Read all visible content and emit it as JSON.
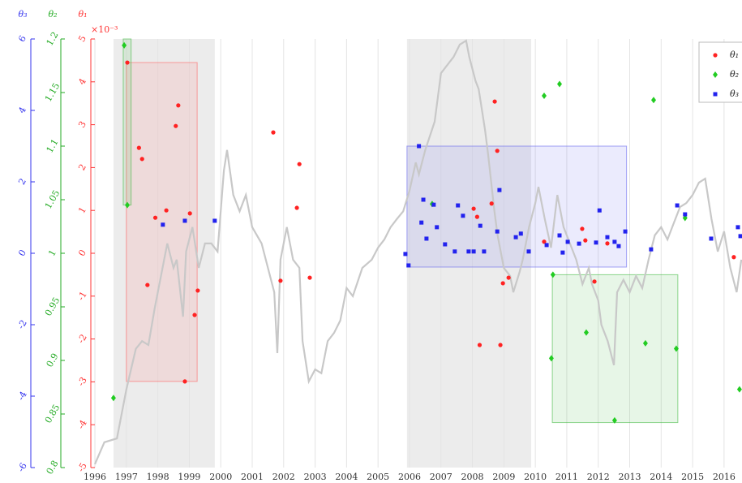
{
  "chart_data": {
    "type": "scatter",
    "xlim": [
      1995.87,
      2016.57
    ],
    "xticks": [
      1996,
      1997,
      1998,
      1999,
      2000,
      2001,
      2002,
      2003,
      2004,
      2005,
      2006,
      2007,
      2008,
      2009,
      2010,
      2011,
      2012,
      2013,
      2014,
      2015,
      2016
    ],
    "grid": true,
    "y_axes": [
      {
        "title": "θ₁",
        "color": "#ff3333",
        "ylim": [
          -5,
          5
        ],
        "yticks": [
          -5,
          -4,
          -3,
          -2,
          -1,
          0,
          1,
          2,
          3,
          4,
          5
        ],
        "multiplier": "×10⁻³"
      },
      {
        "title": "θ₂",
        "color": "#22aa22",
        "ylim": [
          0.8,
          1.2
        ],
        "yticks": [
          0.8,
          0.85,
          0.9,
          0.95,
          1,
          1.05,
          1.1,
          1.15,
          1.2
        ]
      },
      {
        "title": "θ₃",
        "color": "#3333ee",
        "ylim": [
          -6,
          6
        ],
        "yticks": [
          -6,
          -4,
          -2,
          0,
          2,
          4,
          6
        ]
      }
    ],
    "shaded_periods": [
      {
        "color": "#ececec",
        "x": [
          1996.59,
          1999.81
        ]
      },
      {
        "color": "#ececec",
        "x": [
          2005.92,
          2009.87
        ]
      }
    ],
    "boxes": [
      {
        "axis": 0,
        "color": "#ff6666",
        "x": [
          1997.0,
          1999.25
        ],
        "y": [
          -2.99,
          4.45
        ]
      },
      {
        "axis": 1,
        "color": "#44bb44",
        "x": [
          1996.9,
          1997.15
        ],
        "y": [
          1.045,
          1.2
        ]
      },
      {
        "axis": 2,
        "color": "#6666ee",
        "x": [
          2005.92,
          2012.9
        ],
        "y": [
          -0.386,
          3.0
        ]
      },
      {
        "axis": 1,
        "color": "#44bb44",
        "x": [
          2010.54,
          2014.53
        ],
        "y": [
          0.842,
          0.98
        ]
      }
    ],
    "background_line": {
      "axis": 0,
      "color": "#c8c8c8",
      "x": [
        1996.0,
        1996.3,
        1996.7,
        1997.0,
        1997.3,
        1997.5,
        1997.7,
        1997.9,
        1998.1,
        1998.3,
        1998.5,
        1998.6,
        1998.8,
        1998.9,
        1999.1,
        1999.3,
        1999.5,
        1999.7,
        1999.9,
        2000.1,
        2000.2,
        2000.4,
        2000.6,
        2000.8,
        2001.0,
        2001.3,
        2001.5,
        2001.7,
        2001.8,
        2001.9,
        2002.1,
        2002.3,
        2002.5,
        2002.6,
        2002.8,
        2003.0,
        2003.2,
        2003.4,
        2003.6,
        2003.8,
        2004.0,
        2004.2,
        2004.5,
        2004.8,
        2005.0,
        2005.2,
        2005.4,
        2005.6,
        2005.8,
        2006.0,
        2006.2,
        2006.3,
        2006.5,
        2006.8,
        2007.0,
        2007.2,
        2007.4,
        2007.6,
        2007.8,
        2007.9,
        2008.1,
        2008.2,
        2008.4,
        2008.5,
        2008.7,
        2008.8,
        2009.0,
        2009.2,
        2009.3,
        2009.5,
        2009.6,
        2009.8,
        2010.0,
        2010.1,
        2010.3,
        2010.5,
        2010.7,
        2010.9,
        2011.1,
        2011.3,
        2011.5,
        2011.7,
        2011.8,
        2012.0,
        2012.1,
        2012.3,
        2012.5,
        2012.6,
        2012.8,
        2013.0,
        2013.2,
        2013.4,
        2013.6,
        2013.8,
        2014.0,
        2014.2,
        2014.4,
        2014.6,
        2014.8,
        2015.0,
        2015.2,
        2015.4,
        2015.6,
        2015.8,
        2016.0,
        2016.2,
        2016.4,
        2016.55
      ],
      "values": [
        -4.92,
        -4.41,
        -4.32,
        -3.18,
        -2.23,
        -2.05,
        -2.14,
        -1.29,
        -0.53,
        0.23,
        -0.34,
        -0.15,
        -1.48,
        0.04,
        0.61,
        -0.34,
        0.23,
        0.23,
        0.04,
        1.93,
        2.41,
        1.36,
        0.98,
        1.36,
        0.61,
        0.23,
        -0.34,
        -0.91,
        -2.33,
        -0.15,
        0.61,
        -0.15,
        -0.34,
        -2.05,
        -2.99,
        -2.71,
        -2.8,
        -2.05,
        -1.86,
        -1.57,
        -0.81,
        -1.0,
        -0.34,
        -0.15,
        0.13,
        0.32,
        0.61,
        0.8,
        0.98,
        1.46,
        2.12,
        1.84,
        2.41,
        3.07,
        4.2,
        4.39,
        4.58,
        4.87,
        4.96,
        4.58,
        4.02,
        3.83,
        2.88,
        2.31,
        0.98,
        0.42,
        -0.34,
        -0.53,
        -0.91,
        -0.44,
        -0.15,
        0.61,
        1.17,
        1.55,
        0.8,
        0.13,
        1.36,
        0.61,
        0.23,
        -0.15,
        -0.72,
        -0.34,
        -0.72,
        -1.1,
        -1.67,
        -2.05,
        -2.61,
        -0.91,
        -0.62,
        -0.91,
        -0.53,
        -0.81,
        -0.15,
        0.42,
        0.61,
        0.32,
        0.7,
        1.08,
        1.17,
        1.36,
        1.65,
        1.74,
        0.8,
        0.04,
        0.51,
        -0.34,
        -0.91,
        -0.15
      ]
    },
    "series": [
      {
        "name": "θ₁",
        "color": "#ff2222",
        "axis": 0,
        "marker": "circle",
        "x": [
          1997.03,
          1997.4,
          1997.5,
          1997.67,
          1997.92,
          1998.27,
          1998.57,
          1998.65,
          1998.86,
          1999.02,
          1999.17,
          1999.27,
          2001.67,
          2001.9,
          2002.42,
          2002.5,
          2002.83,
          2008.04,
          2008.15,
          2008.23,
          2008.61,
          2008.71,
          2008.79,
          2008.89,
          2008.97,
          2009.15,
          2010.28,
          2011.49,
          2011.59,
          2011.88,
          2012.29,
          2016.31
        ],
        "values": [
          4.45,
          2.46,
          2.2,
          -0.74,
          0.83,
          1.0,
          2.97,
          3.45,
          -2.99,
          0.93,
          -1.44,
          -0.87,
          2.82,
          -0.64,
          1.06,
          2.08,
          -0.57,
          1.04,
          0.85,
          -2.14,
          1.16,
          3.54,
          2.39,
          -2.14,
          -0.7,
          -0.57,
          0.27,
          0.57,
          0.3,
          -0.66,
          0.23,
          -0.09
        ]
      },
      {
        "name": "θ₂",
        "color": "#22cc22",
        "axis": 1,
        "marker": "diamond",
        "x": [
          1996.59,
          1996.93,
          1997.03,
          2006.72,
          2010.28,
          2010.56,
          2010.77,
          2010.51,
          2011.62,
          2012.52,
          2013.5,
          2013.76,
          2014.48,
          2014.76,
          2016.49
        ],
        "values": [
          0.865,
          1.194,
          1.045,
          1.046,
          1.147,
          0.98,
          1.158,
          0.902,
          0.926,
          0.844,
          0.916,
          1.143,
          0.911,
          1.033,
          0.873
        ]
      },
      {
        "name": "θ₃",
        "color": "#2222ee",
        "axis": 2,
        "marker": "square",
        "x": [
          1998.16,
          1998.86,
          1999.81,
          2005.87,
          2005.97,
          2006.3,
          2006.44,
          2006.38,
          2006.54,
          2006.77,
          2006.87,
          2007.13,
          2007.44,
          2007.54,
          2007.7,
          2007.88,
          2008.04,
          2008.25,
          2008.37,
          2008.79,
          2008.86,
          2009.38,
          2009.54,
          2009.79,
          2010.36,
          2010.77,
          2010.87,
          2011.03,
          2011.39,
          2011.93,
          2012.04,
          2012.29,
          2012.52,
          2012.65,
          2012.86,
          2013.68,
          2014.51,
          2014.76,
          2015.59,
          2016.44,
          2016.52
        ],
        "values": [
          0.8,
          0.91,
          0.91,
          -0.02,
          -0.34,
          3.0,
          1.5,
          0.86,
          0.41,
          1.36,
          0.73,
          0.25,
          0.05,
          1.34,
          1.05,
          0.05,
          0.05,
          0.77,
          0.05,
          0.61,
          1.77,
          0.45,
          0.55,
          0.05,
          0.23,
          0.5,
          0.02,
          0.32,
          0.27,
          0.3,
          1.2,
          0.45,
          0.32,
          0.2,
          0.61,
          0.11,
          1.34,
          1.09,
          0.41,
          0.73,
          0.48
        ]
      }
    ]
  }
}
